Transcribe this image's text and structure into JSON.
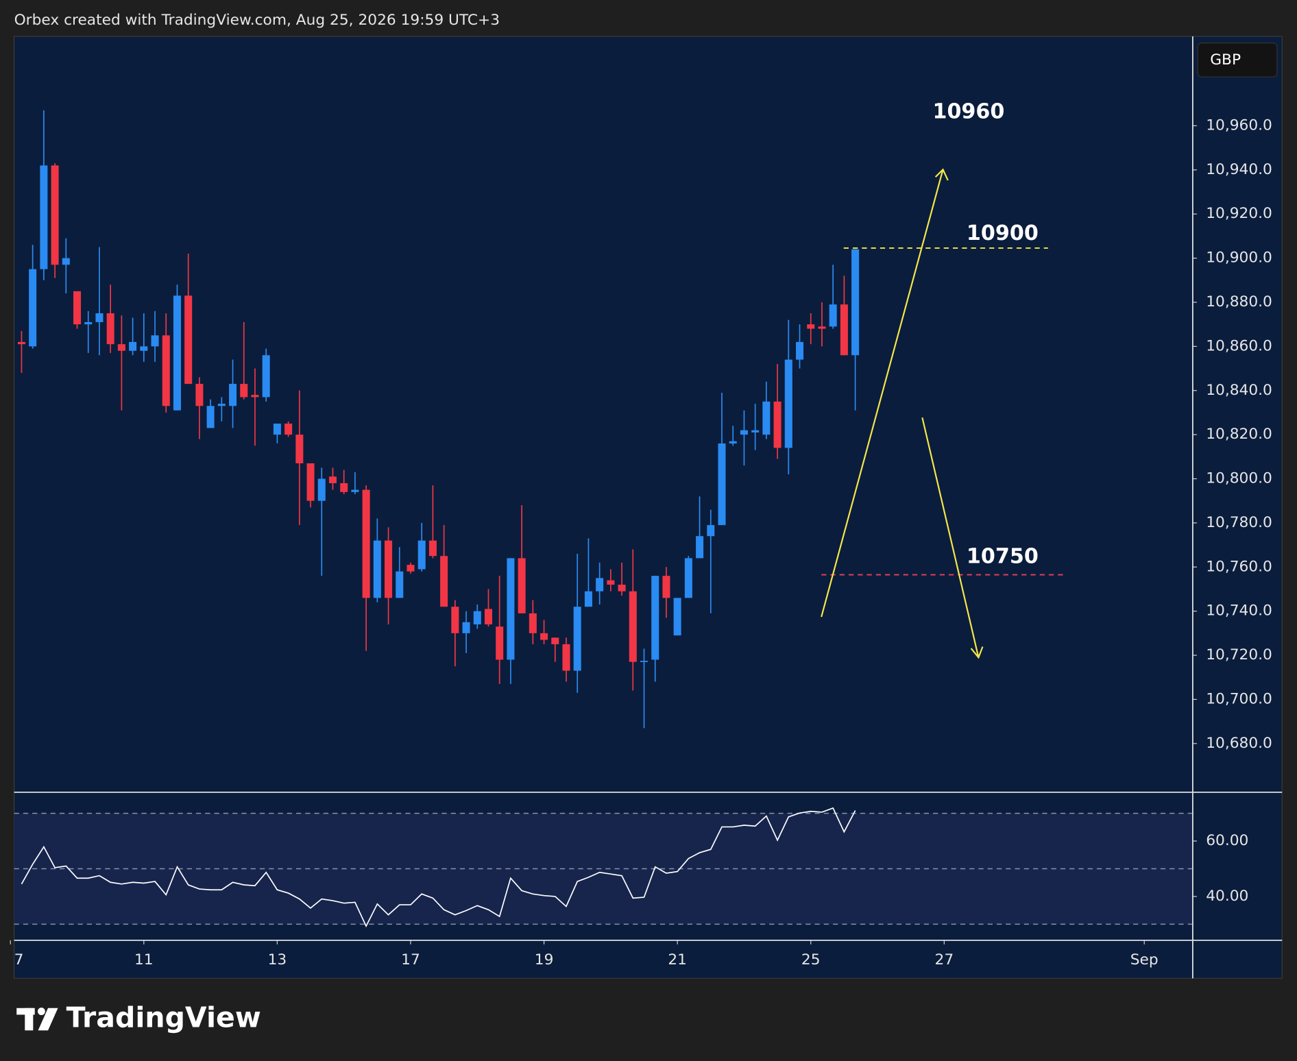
{
  "header": "Orbex created with TradingView.com, Aug 25, 2026 19:59 UTC+3",
  "currency": "GBP",
  "logo": "TradingView",
  "chart_data": [
    {
      "type": "candlestick",
      "x": [
        0,
        1,
        2,
        3,
        4,
        5,
        6,
        7,
        8,
        9,
        10,
        11,
        12,
        13,
        14,
        15,
        16,
        17,
        18,
        19,
        20,
        21,
        22,
        23,
        24,
        25,
        26,
        27,
        28,
        29,
        30,
        31,
        32,
        33,
        34,
        35,
        36,
        37,
        38,
        39,
        40,
        41,
        42,
        43,
        44,
        45,
        46,
        47,
        48,
        49,
        50,
        51,
        52,
        53,
        54,
        55,
        56,
        57,
        58,
        59,
        60,
        61,
        62,
        63,
        64,
        65,
        66,
        67,
        68,
        69,
        70,
        71,
        72,
        73,
        74,
        75
      ],
      "open": [
        10862,
        10860,
        10895,
        10942,
        10897,
        10885,
        10870,
        10871,
        10875,
        10861,
        10858,
        10858,
        10860,
        10865,
        10831,
        10883,
        10843,
        10823,
        10833,
        10833,
        10843,
        10838,
        10837,
        10820,
        10825,
        10820,
        10807,
        10790,
        10801,
        10798,
        10794,
        10795,
        10746,
        10772,
        10746,
        10761,
        10759,
        10772,
        10765,
        10742,
        10730,
        10734,
        10741,
        10733,
        10718,
        10764,
        10739,
        10730,
        10728,
        10725,
        10713,
        10742,
        10749,
        10754,
        10752,
        10749,
        10717,
        10718,
        10756,
        10729,
        10746,
        10764,
        10774,
        10779,
        10816,
        10820,
        10821,
        10820,
        10835,
        10814,
        10854,
        10870,
        10869,
        10869,
        10879,
        10856
      ],
      "high": [
        10867,
        10906,
        10967,
        10943,
        10909,
        10885,
        10876,
        10905,
        10888,
        10874,
        10873,
        10875,
        10876,
        10875,
        10888,
        10902,
        10846,
        10836,
        10837,
        10854,
        10871,
        10850,
        10859,
        10825,
        10826,
        10840,
        10807,
        10805,
        10805,
        10804,
        10803,
        10797,
        10782,
        10778,
        10769,
        10762,
        10780,
        10797,
        10779,
        10745,
        10740,
        10743,
        10750,
        10756,
        10764,
        10788,
        10745,
        10736,
        10728,
        10728,
        10766,
        10773,
        10762,
        10759,
        10762,
        10768,
        10723,
        10756,
        10760,
        10746,
        10765,
        10792,
        10786,
        10839,
        10824,
        10831,
        10834,
        10844,
        10852,
        10872,
        10870,
        10875,
        10880,
        10897,
        10892,
        10904
      ],
      "low": [
        10848,
        10859,
        10890,
        10891,
        10884,
        10868,
        10857,
        10856,
        10857,
        10831,
        10856,
        10853,
        10853,
        10830,
        10831,
        10843,
        10818,
        10823,
        10826,
        10823,
        10836,
        10815,
        10835,
        10816,
        10819,
        10779,
        10787,
        10756,
        10795,
        10793,
        10793,
        10722,
        10744,
        10734,
        10746,
        10757,
        10758,
        10764,
        10742,
        10715,
        10721,
        10732,
        10733,
        10707,
        10707,
        10739,
        10725,
        10725,
        10717,
        10708,
        10703,
        10742,
        10743,
        10749,
        10747,
        10704,
        10687,
        10708,
        10737,
        10729,
        10746,
        10764,
        10739,
        10779,
        10815,
        10806,
        10813,
        10818,
        10809,
        10802,
        10850,
        10861,
        10860,
        10868,
        10856,
        10831
      ],
      "close": [
        10861,
        10895,
        10942,
        10897,
        10900,
        10870,
        10871,
        10875,
        10861,
        10858,
        10862,
        10860,
        10865,
        10833,
        10883,
        10843,
        10833,
        10833,
        10834,
        10843,
        10837,
        10837,
        10856,
        10825,
        10820,
        10807,
        10790,
        10800,
        10798,
        10794,
        10795,
        10746,
        10772,
        10746,
        10758,
        10758,
        10772,
        10765,
        10742,
        10730,
        10735,
        10740,
        10734,
        10718,
        10764,
        10739,
        10730,
        10727,
        10725,
        10713,
        10742,
        10749,
        10755,
        10752,
        10749,
        10717,
        10717.5,
        10756,
        10746,
        10746,
        10764,
        10774,
        10779,
        10816,
        10817,
        10822,
        10822,
        10835,
        10814,
        10854,
        10862,
        10868,
        10868,
        10879,
        10856,
        10904
      ],
      "up_color": "#2a8bf2",
      "down_color": "#f23645",
      "xlim": [
        -0.67,
        105.36
      ],
      "xticks": [
        {
          "value": -1,
          "label": "7"
        },
        {
          "value": 11,
          "label": "11"
        },
        {
          "value": 23,
          "label": "13"
        },
        {
          "value": 35,
          "label": "17"
        },
        {
          "value": 47,
          "label": "19"
        },
        {
          "value": 59,
          "label": "21"
        },
        {
          "value": 71,
          "label": "25"
        },
        {
          "value": 83,
          "label": "27"
        },
        {
          "value": 101,
          "label": "Sep"
        }
      ],
      "ylim": [
        10658.3,
        11000.5
      ],
      "yticks": [
        {
          "value": 10680,
          "label": "10,680.0"
        },
        {
          "value": 10700,
          "label": "10,700.0"
        },
        {
          "value": 10720,
          "label": "10,720.0"
        },
        {
          "value": 10740,
          "label": "10,740.0"
        },
        {
          "value": 10760,
          "label": "10,760.0"
        },
        {
          "value": 10780,
          "label": "10,780.0"
        },
        {
          "value": 10800,
          "label": "10,800.0"
        },
        {
          "value": 10820,
          "label": "10,820.0"
        },
        {
          "value": 10840,
          "label": "10,840.0"
        },
        {
          "value": 10860,
          "label": "10,860.0"
        },
        {
          "value": 10880,
          "label": "10,880.0"
        },
        {
          "value": 10900,
          "label": "10,900.0"
        },
        {
          "value": 10920,
          "label": "10,920.0"
        },
        {
          "value": 10940,
          "label": "10,940.0"
        },
        {
          "value": 10960,
          "label": "10,960.0"
        }
      ],
      "annotations": [
        "10960",
        "10900",
        "10750"
      ]
    },
    {
      "type": "line",
      "x": [
        0,
        1,
        2,
        3,
        4,
        5,
        6,
        7,
        8,
        9,
        10,
        11,
        12,
        13,
        14,
        15,
        16,
        17,
        18,
        19,
        20,
        21,
        22,
        23,
        24,
        25,
        26,
        27,
        28,
        29,
        30,
        31,
        32,
        33,
        34,
        35,
        36,
        37,
        38,
        39,
        40,
        41,
        42,
        43,
        44,
        45,
        46,
        47,
        48,
        49,
        50,
        51,
        52,
        53,
        54,
        55,
        56,
        57,
        58,
        59,
        60,
        61,
        62,
        63,
        64,
        65,
        66,
        67,
        68,
        69,
        70,
        71,
        72,
        73,
        74,
        75
      ],
      "values": [
        44.5,
        51.6,
        57.9,
        50.4,
        51.0,
        46.6,
        46.6,
        47.5,
        45.1,
        44.5,
        45.1,
        44.8,
        45.4,
        40.6,
        50.7,
        44.2,
        42.7,
        42.4,
        42.4,
        45.1,
        44.2,
        43.9,
        48.7,
        42.4,
        41.2,
        39.1,
        35.8,
        39.1,
        38.5,
        37.6,
        37.9,
        29.3,
        37.3,
        33.4,
        37.0,
        37.0,
        40.9,
        39.4,
        35.2,
        33.4,
        34.9,
        36.7,
        35.2,
        32.8,
        46.6,
        42.1,
        40.9,
        40.3,
        40.0,
        36.4,
        45.4,
        46.9,
        48.7,
        48.1,
        47.5,
        39.4,
        39.7,
        50.7,
        48.4,
        49.0,
        53.7,
        55.8,
        57.0,
        65.1,
        65.1,
        65.7,
        65.4,
        69.0,
        60.3,
        68.7,
        70.1,
        70.7,
        70.4,
        71.9,
        63.3,
        71.0
      ],
      "color": "#ffffff",
      "band_color": "#17254d",
      "levels": [
        30,
        50,
        70
      ],
      "xlim": [
        -0.67,
        105.36
      ],
      "ylim": [
        24.2,
        77.6
      ],
      "yticks": [
        {
          "value": 40,
          "label": "40.00"
        },
        {
          "value": 60,
          "label": "60.00"
        }
      ]
    }
  ]
}
